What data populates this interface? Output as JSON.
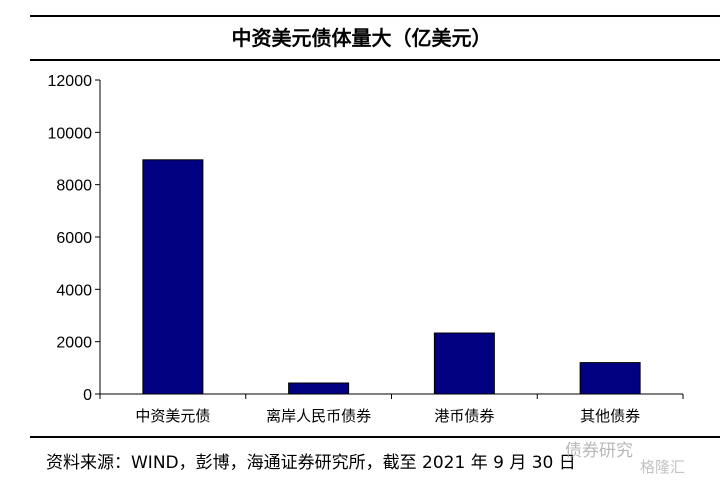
{
  "chart_data": {
    "type": "bar",
    "title": "中资美元债体量大（亿美元）",
    "categories": [
      "中资美元债",
      "离岸人民币债券",
      "港币债券",
      "其他债券"
    ],
    "values": [
      8950,
      420,
      2330,
      1200
    ],
    "ylim": [
      0,
      12000
    ],
    "yticks": [
      0,
      2000,
      4000,
      6000,
      8000,
      10000,
      12000
    ],
    "xlabel": "",
    "ylabel": "",
    "grid": false,
    "bar_color": "#000080"
  },
  "footer": "资料来源：WIND，彭博，海通证券研究所，截至 2021 年 9 月 30 日",
  "watermark": {
    "line1": "债券研究",
    "line2": "格隆汇"
  }
}
